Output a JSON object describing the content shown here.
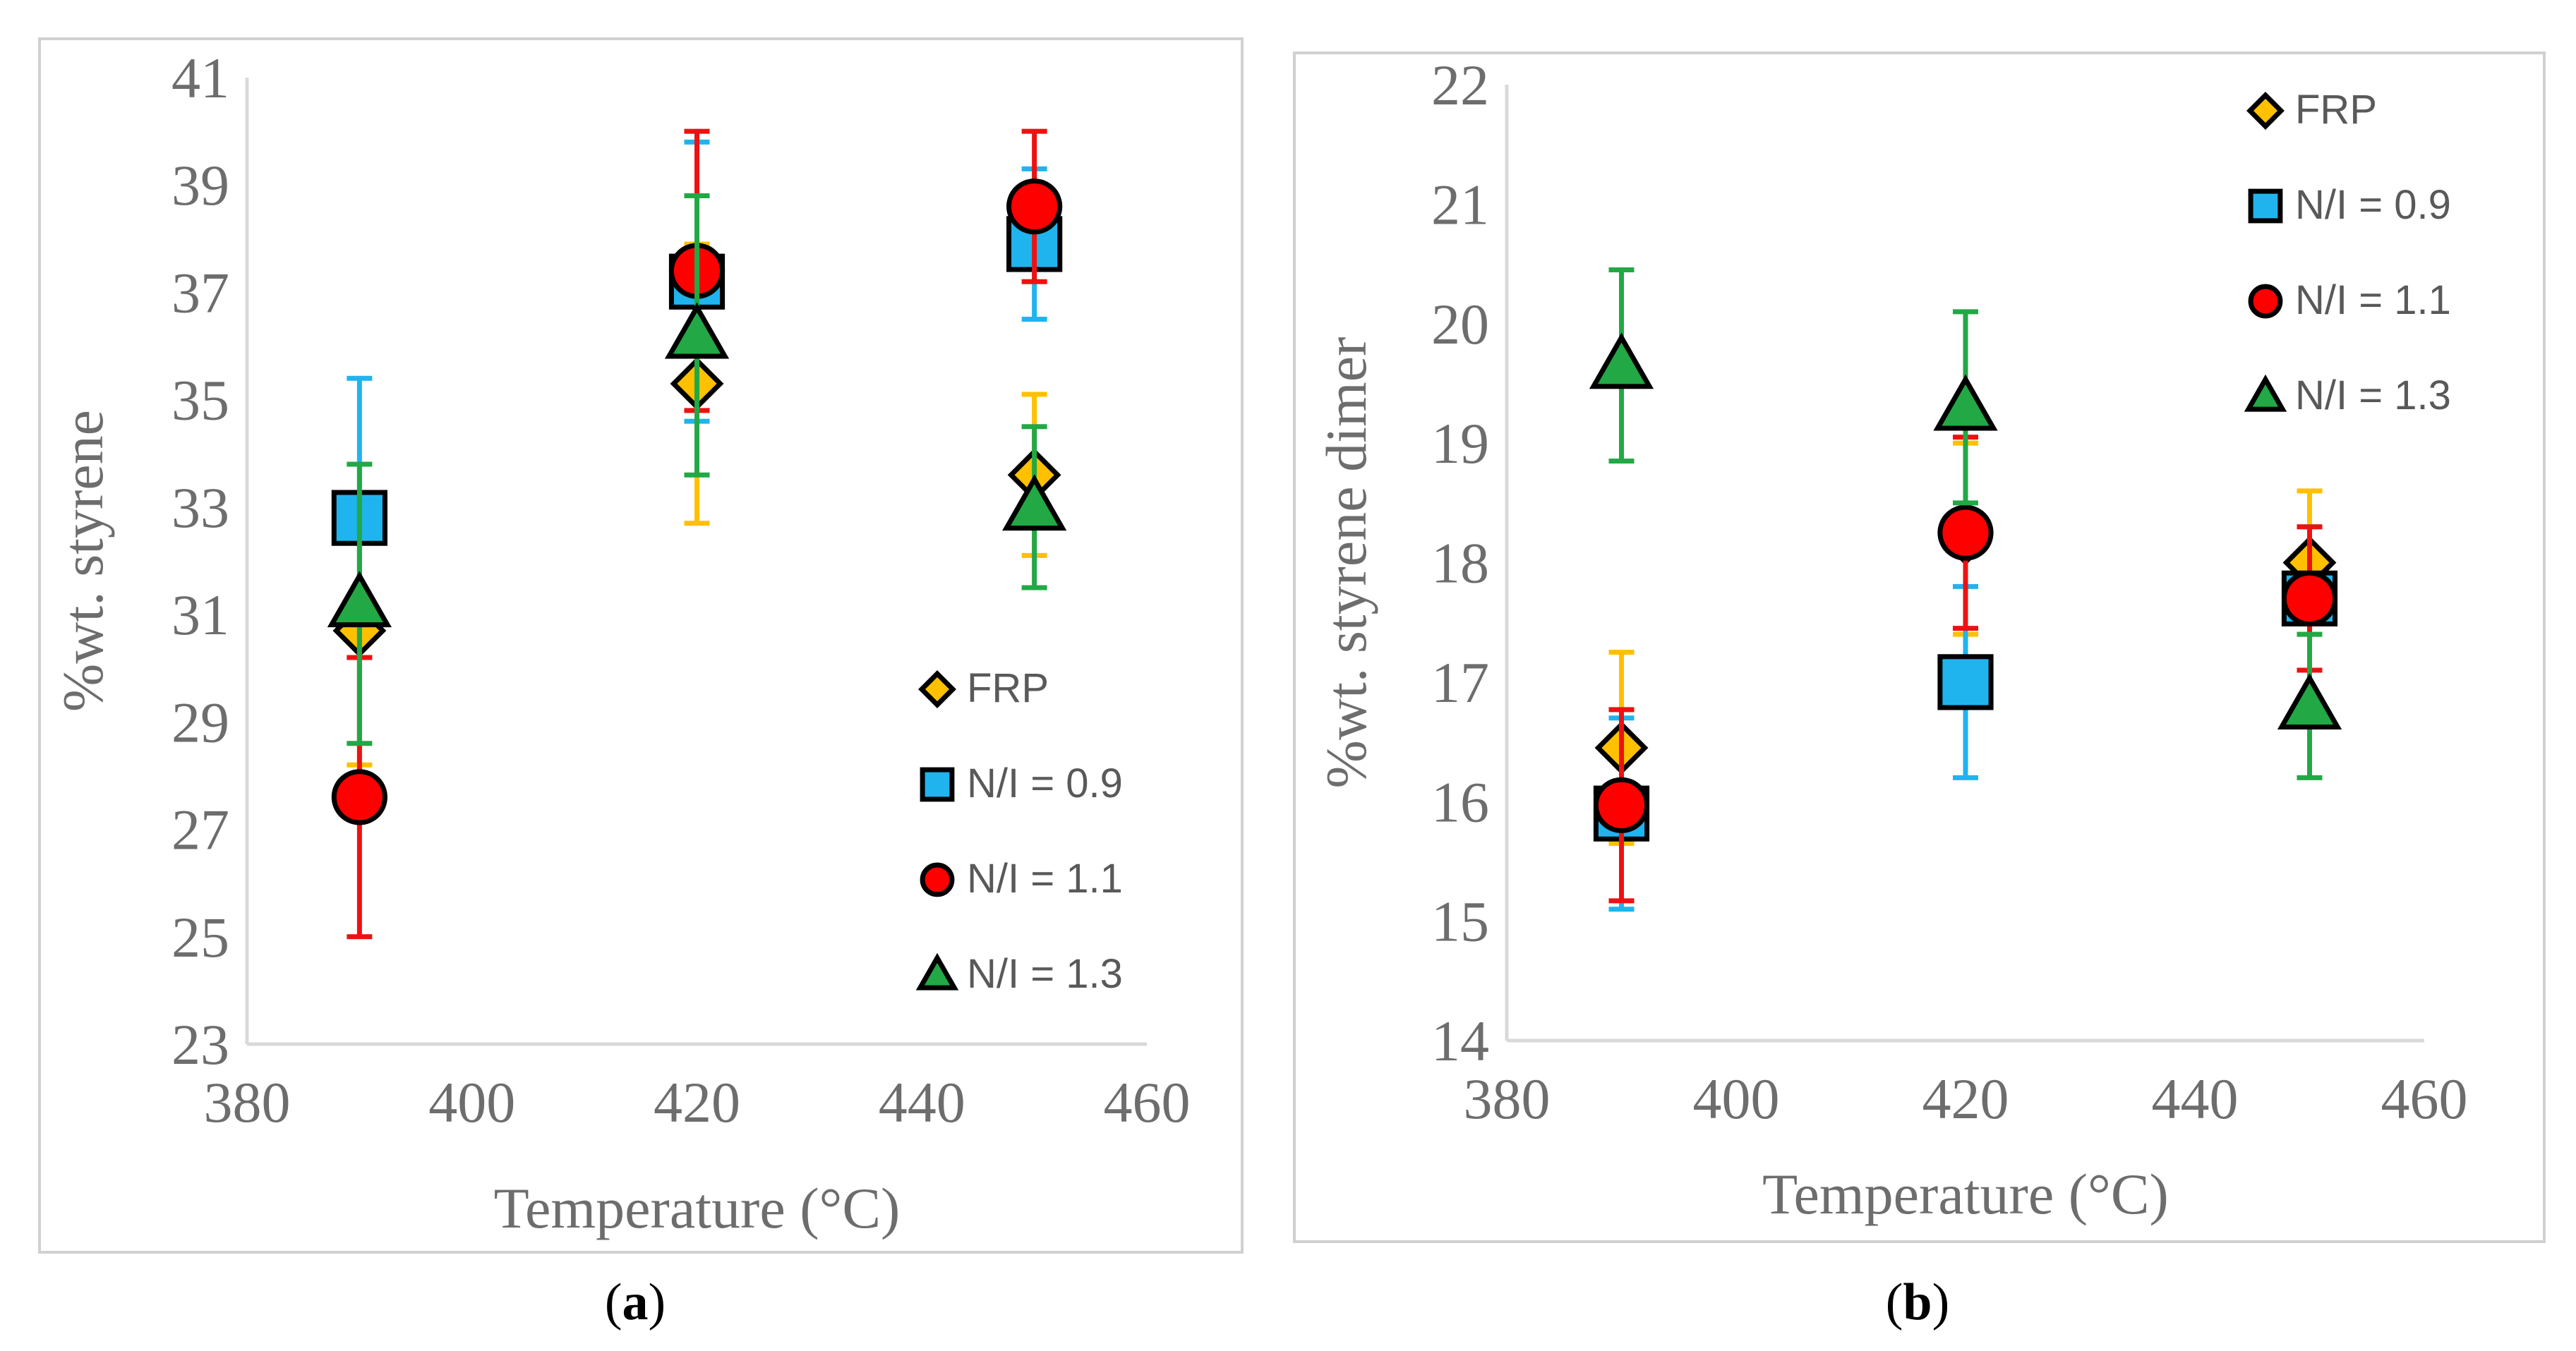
{
  "chart_data": [
    {
      "type": "scatter",
      "panel_label": "a",
      "xlabel": "Temperature (°C)",
      "ylabel": "%wt. styrene",
      "xlim": [
        380,
        460
      ],
      "ylim": [
        23,
        41
      ],
      "xticks": [
        380,
        400,
        420,
        440,
        460
      ],
      "yticks": [
        23,
        25,
        27,
        29,
        31,
        33,
        35,
        37,
        39,
        41
      ],
      "legend_position": "bottom-right",
      "series": [
        {
          "name": "FRP",
          "marker": "diamond",
          "color": "#FFC000",
          "errcolor": "#FFC000",
          "points": [
            {
              "x": 390,
              "y": 30.7,
              "err": 2.5
            },
            {
              "x": 420,
              "y": 35.3,
              "err": 2.6
            },
            {
              "x": 450,
              "y": 33.6,
              "err": 1.5
            }
          ]
        },
        {
          "name": "N/I = 0.9",
          "marker": "square",
          "color": "#1FB4EE",
          "errcolor": "#1FB4EE",
          "points": [
            {
              "x": 390,
              "y": 32.8,
              "err": 2.6
            },
            {
              "x": 420,
              "y": 37.2,
              "err": 2.6
            },
            {
              "x": 450,
              "y": 37.9,
              "err": 1.4
            }
          ]
        },
        {
          "name": "N/I = 1.1",
          "marker": "circle",
          "color": "#FF0000",
          "errcolor": "#EE1111",
          "points": [
            {
              "x": 390,
              "y": 27.6,
              "err": 2.6
            },
            {
              "x": 420,
              "y": 37.4,
              "err": 2.6
            },
            {
              "x": 450,
              "y": 38.6,
              "err": 1.4
            }
          ]
        },
        {
          "name": "N/I = 1.3",
          "marker": "triangle",
          "color": "#22A845",
          "errcolor": "#22A845",
          "points": [
            {
              "x": 390,
              "y": 31.2,
              "err": 2.6
            },
            {
              "x": 420,
              "y": 36.2,
              "err": 2.6
            },
            {
              "x": 450,
              "y": 33.0,
              "err": 1.5
            }
          ]
        }
      ]
    },
    {
      "type": "scatter",
      "panel_label": "b",
      "xlabel": "Temperature (°C)",
      "ylabel": "%wt. styrene dimer",
      "xlim": [
        380,
        460
      ],
      "ylim": [
        14,
        22
      ],
      "xticks": [
        380,
        400,
        420,
        440,
        460
      ],
      "yticks": [
        14,
        15,
        16,
        17,
        18,
        19,
        20,
        21,
        22
      ],
      "legend_position": "top-right",
      "series": [
        {
          "name": "FRP",
          "marker": "diamond",
          "color": "#FFC000",
          "errcolor": "#FFC000",
          "points": [
            {
              "x": 390,
              "y": 16.45,
              "err": 0.8
            },
            {
              "x": 420,
              "y": 18.2,
              "err": 0.8
            },
            {
              "x": 450,
              "y": 18.0,
              "err": 0.6
            }
          ]
        },
        {
          "name": "N/I = 0.9",
          "marker": "square",
          "color": "#1FB4EE",
          "errcolor": "#1FB4EE",
          "points": [
            {
              "x": 390,
              "y": 15.9,
              "err": 0.8
            },
            {
              "x": 420,
              "y": 17.0,
              "err": 0.8
            },
            {
              "x": 450,
              "y": 17.7,
              "err": 0.6
            }
          ]
        },
        {
          "name": "N/I = 1.1",
          "marker": "circle",
          "color": "#FF0000",
          "errcolor": "#EE1111",
          "points": [
            {
              "x": 390,
              "y": 15.97,
              "err": 0.8
            },
            {
              "x": 420,
              "y": 18.25,
              "err": 0.8
            },
            {
              "x": 450,
              "y": 17.7,
              "err": 0.6
            }
          ]
        },
        {
          "name": "N/I = 1.3",
          "marker": "triangle",
          "color": "#22A845",
          "errcolor": "#22A845",
          "points": [
            {
              "x": 390,
              "y": 19.65,
              "err": 0.8
            },
            {
              "x": 420,
              "y": 19.3,
              "err": 0.8
            },
            {
              "x": 450,
              "y": 16.8,
              "err": 0.6
            }
          ]
        }
      ]
    }
  ]
}
